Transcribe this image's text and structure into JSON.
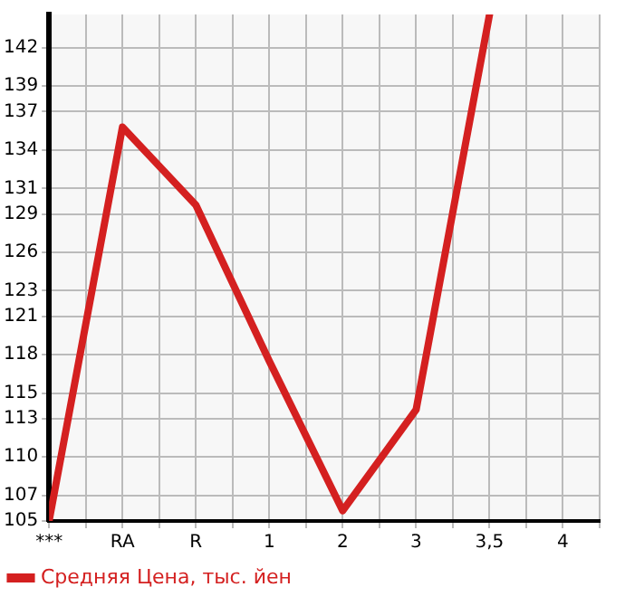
{
  "chart_data": {
    "type": "line",
    "categories": [
      "***",
      "RA",
      "R",
      "1",
      "2",
      "3",
      "3,5",
      "4"
    ],
    "series": [
      {
        "name": "Средняя Цена, тыс. йен",
        "color": "#d42020",
        "values": [
          105,
          135.8,
          129.7,
          117.5,
          105.8,
          113.7,
          144.6,
          null
        ]
      }
    ],
    "ylim": [
      105,
      144.6
    ],
    "yticks": [
      105,
      107,
      110,
      113,
      115,
      118,
      121,
      123,
      126,
      129,
      131,
      134,
      137,
      139,
      142
    ],
    "grid": true,
    "legend": "bottom left",
    "marker": "none",
    "line_style": "solid"
  }
}
